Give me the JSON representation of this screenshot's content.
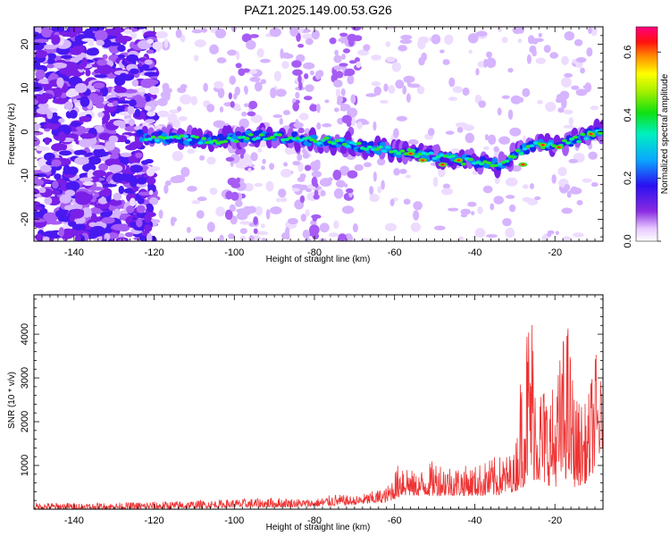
{
  "title": "PAZ1.2025.149.00.53.G26",
  "colors": {
    "snr_line": "#ee3333",
    "frame": "#000000",
    "background": "#ffffff"
  },
  "chart_data": [
    {
      "type": "heatmap",
      "xlabel": "Height of straight line (km)",
      "ylabel": "Frequency (Hz)",
      "xlim": [
        -150,
        -8
      ],
      "ylim": [
        -25,
        24
      ],
      "x_ticks": [
        -140,
        -120,
        -100,
        -80,
        -60,
        -40,
        -20
      ],
      "y_ticks": [
        -20,
        -10,
        0,
        10,
        20
      ],
      "grid": false,
      "colorscale": "rainbow (white - violet - blue - cyan - green - yellow - red - magenta)",
      "colorbar": {
        "label": "Normalized spectral amplitude",
        "range": [
          0,
          0.68
        ],
        "ticks": [
          0.0,
          0.2,
          0.4,
          0.6
        ]
      },
      "ridge": {
        "description": "dominant signal frequency vs height",
        "x": [
          -123,
          -115,
          -105,
          -95,
          -85,
          -78,
          -70,
          -62,
          -55,
          -48,
          -40,
          -33,
          -30,
          -25,
          -20,
          -15,
          -10
        ],
        "y": [
          -1,
          -1.5,
          -2,
          -1,
          -1.5,
          -2,
          -3,
          -4,
          -5,
          -6,
          -7,
          -7.5,
          -5,
          -3,
          -3,
          -2,
          0
        ]
      }
    },
    {
      "type": "line",
      "xlabel": "Height of straight line (km)",
      "ylabel": "SNR (10 * v/v)",
      "xlim": [
        -150,
        -8
      ],
      "ylim": [
        0,
        4900
      ],
      "x_ticks": [
        -140,
        -120,
        -100,
        -80,
        -60,
        -40,
        -20
      ],
      "y_ticks": [
        1000,
        2000,
        3000,
        4000
      ],
      "grid": false,
      "series": [
        {
          "color": "#ee3333",
          "envelope": {
            "x": [
              -150,
              -130,
              -120,
              -110,
              -100,
              -90,
              -80,
              -75,
              -70,
              -62,
              -58,
              -55,
              -50,
              -45,
              -40,
              -35,
              -30,
              -28,
              -26,
              -24,
              -20,
              -17,
              -15,
              -12,
              -10,
              -8
            ],
            "low": [
              0,
              0,
              0,
              20,
              40,
              40,
              60,
              80,
              100,
              150,
              300,
              300,
              300,
              300,
              300,
              300,
              400,
              500,
              700,
              600,
              500,
              700,
              500,
              600,
              900,
              1400
            ],
            "high": [
              150,
              150,
              180,
              200,
              230,
              270,
              230,
              350,
              300,
              500,
              1250,
              800,
              1150,
              1000,
              1000,
              1200,
              1300,
              3900,
              4950,
              3000,
              2800,
              4600,
              2600,
              2400,
              3700,
              2700
            ]
          }
        }
      ]
    }
  ]
}
